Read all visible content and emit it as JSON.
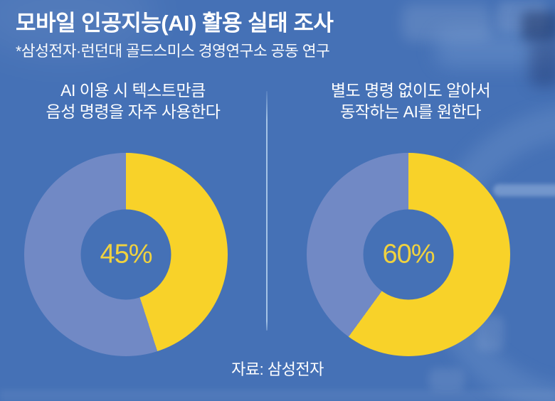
{
  "header": {
    "title": "모바일 인공지능(AI) 활용 실태 조사",
    "subtitle": "*삼성전자·런던대 골드스미스 경영연구소 공동 연구"
  },
  "chart_data": [
    {
      "type": "pie",
      "style": "donut",
      "title": "AI 이용 시 텍스트만큼 음성 명령을 자주 사용한다",
      "title_lines": [
        "AI 이용 시 텍스트만큼",
        "음성 명령을 자주 사용한다"
      ],
      "values": [
        45,
        55
      ],
      "highlight_percent": 45,
      "center_label": "45%",
      "start_angle_deg": 0,
      "direction": "clockwise",
      "highlight_color": "#F8D229",
      "remainder_color": "#7189C5",
      "legend": "none"
    },
    {
      "type": "pie",
      "style": "donut",
      "title": "별도 명령 없이도 알아서 동작하는 AI를 원한다",
      "title_lines": [
        "별도 명령 없이도 알아서",
        "동작하는 AI를 원한다"
      ],
      "values": [
        60,
        40
      ],
      "highlight_percent": 60,
      "center_label": "60%",
      "start_angle_deg": 0,
      "direction": "clockwise",
      "highlight_color": "#F8D229",
      "remainder_color": "#7189C5",
      "legend": "none"
    }
  ],
  "footer": {
    "source": "자료: 삼성전자"
  },
  "colors": {
    "background": "#4571B6",
    "accent_yellow": "#F8D229",
    "muted_slice_blue": "#7189C5",
    "text": "#FFFFFF",
    "divider": "#BFD9F2",
    "percent_text": "#F0D23F"
  }
}
